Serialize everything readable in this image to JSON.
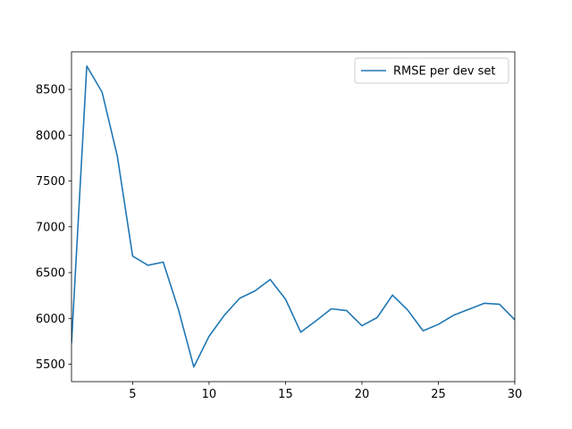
{
  "chart_data": {
    "type": "line",
    "title": "",
    "xlabel": "",
    "ylabel": "",
    "xlim": [
      1,
      30
    ],
    "ylim": [
      5310,
      8910
    ],
    "xticks": [
      5,
      10,
      15,
      20,
      25,
      30
    ],
    "yticks": [
      5500,
      6000,
      6500,
      7000,
      7500,
      8000,
      8500
    ],
    "grid": false,
    "legend": {
      "position": "upper right"
    },
    "series": [
      {
        "name": "RMSE per dev set",
        "color": "#1f77b4",
        "x": [
          1,
          2,
          3,
          4,
          5,
          6,
          7,
          8,
          9,
          10,
          11,
          12,
          13,
          14,
          15,
          16,
          17,
          18,
          19,
          20,
          21,
          22,
          23,
          24,
          25,
          26,
          27,
          28,
          29,
          30
        ],
        "y": [
          5730,
          8755,
          8470,
          7770,
          6680,
          6580,
          6615,
          6095,
          5470,
          5805,
          6035,
          6220,
          6300,
          6425,
          6210,
          5850,
          5975,
          6105,
          6085,
          5920,
          6010,
          6255,
          6090,
          5865,
          5935,
          6035,
          6100,
          6165,
          6155,
          5985
        ]
      }
    ]
  }
}
